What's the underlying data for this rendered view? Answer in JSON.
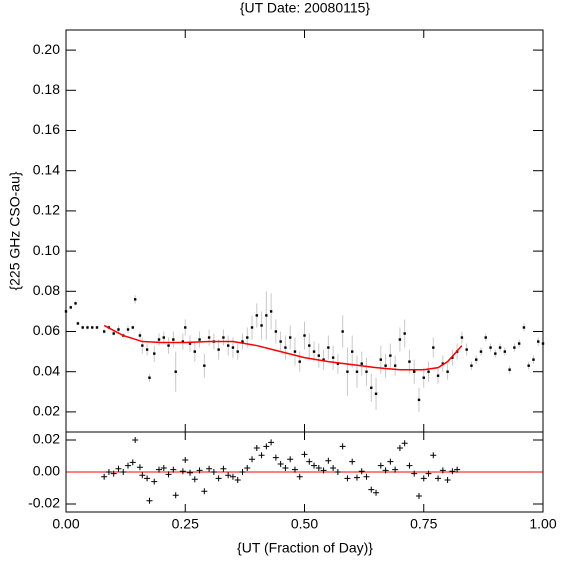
{
  "chart_data": [
    {
      "type": "scatter",
      "title": "{UT Date: 20080115}",
      "ylabel": "{225 GHz CSO-au}",
      "xlim": [
        0,
        1
      ],
      "ylim": [
        0.01,
        0.21
      ],
      "yticks": [
        {
          "value": 0.02,
          "label": "0.02"
        },
        {
          "value": 0.04,
          "label": "0.04"
        },
        {
          "value": 0.06,
          "label": "0.06"
        },
        {
          "value": 0.08,
          "label": "0.08"
        },
        {
          "value": 0.1,
          "label": "0.10"
        },
        {
          "value": 0.12,
          "label": "0.12"
        },
        {
          "value": 0.14,
          "label": "0.14"
        },
        {
          "value": 0.16,
          "label": "0.16"
        },
        {
          "value": 0.18,
          "label": "0.18"
        },
        {
          "value": 0.2,
          "label": "0.20"
        }
      ],
      "series": [
        {
          "color": "#000000",
          "error_color": "#c8c8c8",
          "x": [
            0.0,
            0.01,
            0.02,
            0.025,
            0.035,
            0.045,
            0.055,
            0.065,
            0.08,
            0.09,
            0.1,
            0.11,
            0.12,
            0.13,
            0.14,
            0.145,
            0.155,
            0.16,
            0.17,
            0.175,
            0.185,
            0.195,
            0.205,
            0.215,
            0.225,
            0.23,
            0.245,
            0.25,
            0.26,
            0.27,
            0.28,
            0.29,
            0.3,
            0.31,
            0.32,
            0.33,
            0.34,
            0.35,
            0.36,
            0.37,
            0.38,
            0.39,
            0.4,
            0.41,
            0.42,
            0.43,
            0.44,
            0.45,
            0.46,
            0.47,
            0.48,
            0.49,
            0.5,
            0.51,
            0.52,
            0.53,
            0.54,
            0.55,
            0.56,
            0.57,
            0.58,
            0.59,
            0.6,
            0.61,
            0.62,
            0.63,
            0.64,
            0.65,
            0.66,
            0.67,
            0.68,
            0.69,
            0.7,
            0.71,
            0.72,
            0.73,
            0.74,
            0.75,
            0.76,
            0.77,
            0.78,
            0.79,
            0.8,
            0.81,
            0.82,
            0.83,
            0.84,
            0.85,
            0.86,
            0.87,
            0.88,
            0.89,
            0.9,
            0.91,
            0.92,
            0.93,
            0.94,
            0.95,
            0.96,
            0.97,
            0.98,
            0.99,
            1.0
          ],
          "values": [
            0.07,
            0.072,
            0.074,
            0.064,
            0.062,
            0.062,
            0.062,
            0.062,
            0.06,
            0.062,
            0.059,
            0.061,
            0.058,
            0.061,
            0.062,
            0.076,
            0.058,
            0.053,
            0.051,
            0.037,
            0.049,
            0.056,
            0.057,
            0.053,
            0.056,
            0.04,
            0.055,
            0.062,
            0.054,
            0.05,
            0.056,
            0.043,
            0.057,
            0.055,
            0.051,
            0.057,
            0.053,
            0.052,
            0.05,
            0.055,
            0.057,
            0.062,
            0.068,
            0.063,
            0.068,
            0.07,
            0.06,
            0.055,
            0.052,
            0.057,
            0.05,
            0.045,
            0.058,
            0.053,
            0.05,
            0.048,
            0.046,
            0.052,
            0.047,
            0.044,
            0.06,
            0.04,
            0.05,
            0.04,
            0.044,
            0.04,
            0.032,
            0.029,
            0.046,
            0.043,
            0.048,
            0.043,
            0.056,
            0.059,
            0.045,
            0.04,
            0.026,
            0.037,
            0.04,
            0.052,
            0.038,
            0.044,
            0.04,
            0.047,
            0.05,
            0.057,
            0.051,
            0.043,
            0.046,
            0.05,
            0.057,
            0.052,
            0.049,
            0.052,
            0.05,
            0.041,
            0.052,
            0.054,
            0.062,
            0.043,
            0.046,
            0.055,
            0.054
          ],
          "errors": [
            0.001,
            0.001,
            0.001,
            0.001,
            0.001,
            0.001,
            0.001,
            0.001,
            0.001,
            0.001,
            0.001,
            0.002,
            0.001,
            0.002,
            0.001,
            0.002,
            0.002,
            0.004,
            0.003,
            0.002,
            0.004,
            0.003,
            0.003,
            0.004,
            0.004,
            0.01,
            0.004,
            0.004,
            0.004,
            0.005,
            0.004,
            0.006,
            0.004,
            0.004,
            0.005,
            0.004,
            0.005,
            0.005,
            0.004,
            0.004,
            0.005,
            0.006,
            0.006,
            0.007,
            0.012,
            0.009,
            0.006,
            0.005,
            0.006,
            0.006,
            0.007,
            0.005,
            0.007,
            0.006,
            0.005,
            0.006,
            0.005,
            0.006,
            0.006,
            0.005,
            0.008,
            0.012,
            0.008,
            0.008,
            0.006,
            0.007,
            0.007,
            0.008,
            0.007,
            0.006,
            0.006,
            0.005,
            0.006,
            0.007,
            0.006,
            0.006,
            0.006,
            0.005,
            0.005,
            0.005,
            0.004,
            0.004,
            0.004,
            0.004,
            0.004,
            0.003,
            0.003,
            0.002,
            0.002,
            0.002,
            0.002,
            0.002,
            0.002,
            0.002,
            0.002,
            0.002,
            0.002,
            0.002,
            0.002,
            0.002,
            0.002,
            0.002,
            0.002
          ]
        },
        {
          "color": "#ff0000",
          "style": "line",
          "x": [
            0.08,
            0.12,
            0.16,
            0.2,
            0.25,
            0.3,
            0.35,
            0.4,
            0.45,
            0.5,
            0.55,
            0.6,
            0.65,
            0.7,
            0.75,
            0.78,
            0.8,
            0.83
          ],
          "values": [
            0.063,
            0.058,
            0.055,
            0.0545,
            0.0545,
            0.055,
            0.055,
            0.053,
            0.05,
            0.047,
            0.045,
            0.0435,
            0.042,
            0.041,
            0.041,
            0.042,
            0.045,
            0.053
          ]
        }
      ]
    },
    {
      "type": "scatter",
      "xlabel": "{UT (Fraction of Day)}",
      "xlim": [
        0,
        1
      ],
      "ylim": [
        -0.025,
        0.025
      ],
      "xticks": [
        {
          "value": 0,
          "label": "0.00"
        },
        {
          "value": 0.25,
          "label": "0.25"
        },
        {
          "value": 0.5,
          "label": "0.50"
        },
        {
          "value": 0.75,
          "label": "0.75"
        },
        {
          "value": 1,
          "label": "1.00"
        }
      ],
      "yticks": [
        {
          "value": -0.02,
          "label": "-0.02"
        },
        {
          "value": 0,
          "label": "0.00"
        },
        {
          "value": 0.02,
          "label": "0.02"
        }
      ],
      "reference_line": {
        "value": 0,
        "color": "#ff0000"
      },
      "series": [
        {
          "color": "#000000",
          "marker": "plus",
          "x": [
            0.08,
            0.09,
            0.1,
            0.11,
            0.12,
            0.13,
            0.14,
            0.145,
            0.155,
            0.16,
            0.17,
            0.175,
            0.185,
            0.195,
            0.205,
            0.215,
            0.225,
            0.23,
            0.245,
            0.25,
            0.26,
            0.27,
            0.28,
            0.29,
            0.3,
            0.31,
            0.32,
            0.33,
            0.34,
            0.35,
            0.36,
            0.37,
            0.38,
            0.39,
            0.4,
            0.41,
            0.42,
            0.43,
            0.44,
            0.45,
            0.46,
            0.47,
            0.48,
            0.49,
            0.5,
            0.51,
            0.52,
            0.53,
            0.54,
            0.55,
            0.56,
            0.57,
            0.58,
            0.59,
            0.6,
            0.61,
            0.62,
            0.63,
            0.64,
            0.65,
            0.66,
            0.67,
            0.68,
            0.69,
            0.7,
            0.71,
            0.72,
            0.73,
            0.74,
            0.75,
            0.76,
            0.77,
            0.78,
            0.79,
            0.8,
            0.81,
            0.82
          ],
          "values": [
            -0.003,
            0,
            -0.001,
            0.002,
            0,
            0.004,
            0.006,
            0.02,
            0.003,
            -0.002,
            -0.004,
            -0.018,
            -0.006,
            0.0015,
            0.0025,
            -0.0015,
            0.0015,
            -0.0145,
            0.0005,
            0.0075,
            -0.0005,
            -0.0045,
            0.001,
            -0.012,
            0.002,
            0,
            -0.004,
            0.002,
            -0.002,
            -0.003,
            -0.005,
            0,
            0.0025,
            0.008,
            0.015,
            0.0105,
            0.016,
            0.0185,
            0.009,
            0.005,
            0.0025,
            0.008,
            0.0015,
            -0.003,
            0.011,
            0.0065,
            0.004,
            0.0025,
            0.001,
            0.007,
            0.0025,
            0,
            0.016,
            -0.004,
            0.0065,
            -0.0035,
            0.0005,
            -0.003,
            -0.011,
            -0.013,
            0.004,
            0.001,
            0.0065,
            0.0015,
            0.015,
            0.018,
            0.004,
            -0.001,
            -0.015,
            -0.004,
            -0.001,
            0.0105,
            -0.004,
            0.001,
            -0.005,
            0.0005,
            0.0015
          ]
        }
      ]
    }
  ]
}
